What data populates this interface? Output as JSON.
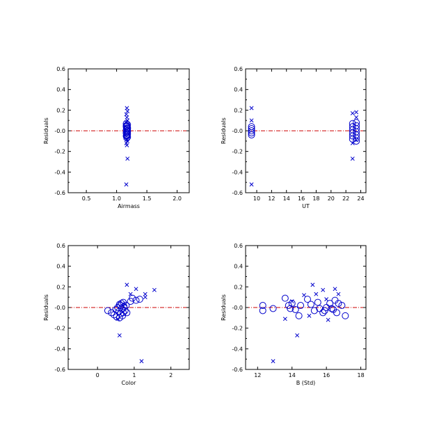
{
  "colors": {
    "points": "#0000cc",
    "zero_line": "#cc0000",
    "axes": "#000000"
  },
  "chart_data": [
    {
      "type": "scatter",
      "xlabel": "Airmass",
      "ylabel": "Residuals",
      "xlim": [
        0.2,
        2.2
      ],
      "ylim": [
        -0.6,
        0.6
      ],
      "xticks": [
        0.5,
        1.0,
        1.5,
        2.0
      ],
      "xtick_labels": [
        "0.5",
        "1.0",
        "1.5",
        "2.0"
      ],
      "yticks": [
        -0.6,
        -0.4,
        -0.2,
        0.0,
        0.2,
        0.4,
        0.6
      ],
      "ytick_labels": [
        "-0.6",
        "-0.4",
        "-0.2",
        "-0.0",
        "0.2",
        "0.4",
        "0.6"
      ],
      "reference_line_y": 0.0,
      "series": [
        {
          "marker": "circle",
          "points": [
            [
              1.16,
              0.07
            ],
            [
              1.18,
              0.06
            ],
            [
              1.17,
              0.05
            ],
            [
              1.16,
              0.04
            ],
            [
              1.18,
              0.03
            ],
            [
              1.17,
              0.02
            ],
            [
              1.16,
              0.01
            ],
            [
              1.18,
              0.0
            ],
            [
              1.17,
              -0.01
            ],
            [
              1.16,
              -0.02
            ],
            [
              1.18,
              -0.03
            ],
            [
              1.17,
              -0.04
            ],
            [
              1.16,
              -0.05
            ],
            [
              1.18,
              -0.06
            ],
            [
              1.17,
              -0.07
            ],
            [
              1.16,
              -0.02
            ],
            [
              1.18,
              0.02
            ],
            [
              1.17,
              -0.05
            ],
            [
              1.16,
              0.05
            ],
            [
              1.18,
              -0.01
            ]
          ]
        },
        {
          "marker": "x",
          "points": [
            [
              1.17,
              0.22
            ],
            [
              1.18,
              0.19
            ],
            [
              1.16,
              0.16
            ],
            [
              1.17,
              0.13
            ],
            [
              1.18,
              0.1
            ],
            [
              1.16,
              0.08
            ],
            [
              1.17,
              -0.08
            ],
            [
              1.18,
              -0.1
            ],
            [
              1.16,
              -0.12
            ],
            [
              1.17,
              -0.14
            ],
            [
              1.18,
              -0.27
            ],
            [
              1.16,
              -0.52
            ]
          ]
        }
      ]
    },
    {
      "type": "scatter",
      "xlabel": "UT",
      "ylabel": "Residuals",
      "xlim": [
        8.5,
        24.7
      ],
      "ylim": [
        -0.6,
        0.6
      ],
      "xticks": [
        10,
        12,
        14,
        16,
        18,
        20,
        22,
        24
      ],
      "xtick_labels": [
        "10",
        "12",
        "14",
        "16",
        "18",
        "20",
        "22",
        "24"
      ],
      "yticks": [
        -0.6,
        -0.4,
        -0.2,
        0.0,
        0.2,
        0.4,
        0.6
      ],
      "ytick_labels": [
        "-0.6",
        "-0.4",
        "-0.2",
        "-0.0",
        "0.2",
        "0.4",
        "0.6"
      ],
      "reference_line_y": 0.0,
      "series": [
        {
          "marker": "circle",
          "points": [
            [
              9.3,
              0.04
            ],
            [
              9.3,
              0.02
            ],
            [
              9.3,
              0.0
            ],
            [
              9.3,
              -0.02
            ],
            [
              9.3,
              -0.04
            ],
            [
              22.9,
              0.07
            ],
            [
              22.9,
              0.04
            ],
            [
              22.9,
              0.01
            ],
            [
              22.9,
              -0.02
            ],
            [
              22.9,
              -0.05
            ],
            [
              22.9,
              -0.08
            ],
            [
              23.4,
              0.08
            ],
            [
              23.4,
              0.05
            ],
            [
              23.4,
              0.02
            ],
            [
              23.4,
              -0.01
            ],
            [
              23.4,
              -0.04
            ],
            [
              23.4,
              -0.07
            ],
            [
              23.4,
              -0.1
            ]
          ]
        },
        {
          "marker": "x",
          "points": [
            [
              9.3,
              0.22
            ],
            [
              9.3,
              0.1
            ],
            [
              9.3,
              -0.52
            ],
            [
              22.9,
              0.17
            ],
            [
              22.9,
              -0.12
            ],
            [
              22.9,
              -0.27
            ],
            [
              23.4,
              0.18
            ],
            [
              23.4,
              0.13
            ],
            [
              23.4,
              -0.09
            ]
          ]
        }
      ]
    },
    {
      "type": "scatter",
      "xlabel": "Color",
      "ylabel": "Residuals",
      "xlim": [
        -0.8,
        2.5
      ],
      "ylim": [
        -0.6,
        0.6
      ],
      "xticks": [
        0,
        1,
        2
      ],
      "xtick_labels": [
        "0",
        "1",
        "2"
      ],
      "yticks": [
        -0.6,
        -0.4,
        -0.2,
        0.0,
        0.2,
        0.4,
        0.6
      ],
      "ytick_labels": [
        "-0.6",
        "-0.4",
        "-0.2",
        "-0.0",
        "0.2",
        "0.4",
        "0.6"
      ],
      "reference_line_y": 0.0,
      "series": [
        {
          "marker": "circle",
          "points": [
            [
              0.28,
              -0.03
            ],
            [
              0.38,
              -0.05
            ],
            [
              0.45,
              -0.07
            ],
            [
              0.5,
              -0.02
            ],
            [
              0.52,
              -0.09
            ],
            [
              0.55,
              0.0
            ],
            [
              0.58,
              -0.04
            ],
            [
              0.6,
              -0.1
            ],
            [
              0.62,
              0.02
            ],
            [
              0.63,
              -0.06
            ],
            [
              0.65,
              0.04
            ],
            [
              0.66,
              -0.01
            ],
            [
              0.68,
              -0.08
            ],
            [
              0.7,
              0.05
            ],
            [
              0.72,
              0.01
            ],
            [
              0.75,
              -0.03
            ],
            [
              0.78,
              0.02
            ],
            [
              0.8,
              -0.05
            ],
            [
              0.9,
              0.06
            ],
            [
              0.95,
              0.09
            ],
            [
              1.05,
              0.07
            ],
            [
              1.15,
              0.08
            ],
            [
              0.6,
              0.03
            ],
            [
              0.7,
              -0.05
            ]
          ]
        },
        {
          "marker": "x",
          "points": [
            [
              0.55,
              -0.11
            ],
            [
              0.6,
              -0.27
            ],
            [
              0.8,
              0.22
            ],
            [
              0.9,
              0.13
            ],
            [
              1.05,
              0.18
            ],
            [
              1.3,
              0.1
            ],
            [
              1.3,
              0.13
            ],
            [
              1.55,
              0.17
            ],
            [
              1.2,
              -0.52
            ],
            [
              0.75,
              0.03
            ]
          ]
        }
      ]
    },
    {
      "type": "scatter",
      "xlabel": "B (Std)",
      "ylabel": "Residuals",
      "xlim": [
        11.3,
        18.3
      ],
      "ylim": [
        -0.6,
        0.6
      ],
      "xticks": [
        12,
        14,
        16,
        18
      ],
      "xtick_labels": [
        "12",
        "14",
        "16",
        "18"
      ],
      "yticks": [
        -0.6,
        -0.4,
        -0.2,
        0.0,
        0.2,
        0.4,
        0.6
      ],
      "ytick_labels": [
        "-0.6",
        "-0.4",
        "-0.2",
        "-0.0",
        "0.2",
        "0.4",
        "0.6"
      ],
      "reference_line_y": 0.0,
      "series": [
        {
          "marker": "circle",
          "points": [
            [
              12.3,
              0.02
            ],
            [
              12.3,
              -0.03
            ],
            [
              12.9,
              -0.01
            ],
            [
              13.6,
              0.09
            ],
            [
              13.8,
              0.02
            ],
            [
              14.0,
              0.04
            ],
            [
              14.2,
              -0.02
            ],
            [
              14.4,
              -0.08
            ],
            [
              14.5,
              0.02
            ],
            [
              14.9,
              0.08
            ],
            [
              15.1,
              0.03
            ],
            [
              15.3,
              -0.03
            ],
            [
              15.5,
              0.05
            ],
            [
              15.6,
              -0.01
            ],
            [
              15.8,
              -0.05
            ],
            [
              16.0,
              0.0
            ],
            [
              16.2,
              0.04
            ],
            [
              16.4,
              -0.02
            ],
            [
              16.5,
              0.07
            ],
            [
              16.6,
              -0.05
            ],
            [
              16.7,
              0.04
            ],
            [
              16.9,
              0.02
            ],
            [
              17.1,
              -0.08
            ],
            [
              13.9,
              -0.01
            ],
            [
              15.9,
              -0.03
            ],
            [
              16.3,
              -0.01
            ]
          ]
        },
        {
          "marker": "x",
          "points": [
            [
              12.9,
              -0.52
            ],
            [
              13.6,
              -0.11
            ],
            [
              14.3,
              -0.27
            ],
            [
              14.7,
              0.12
            ],
            [
              15.2,
              0.22
            ],
            [
              15.4,
              0.13
            ],
            [
              15.8,
              0.17
            ],
            [
              16.0,
              0.08
            ],
            [
              16.1,
              -0.12
            ],
            [
              16.5,
              0.18
            ],
            [
              16.7,
              0.13
            ],
            [
              14.0,
              0.06
            ],
            [
              15.0,
              -0.08
            ]
          ]
        }
      ]
    }
  ]
}
